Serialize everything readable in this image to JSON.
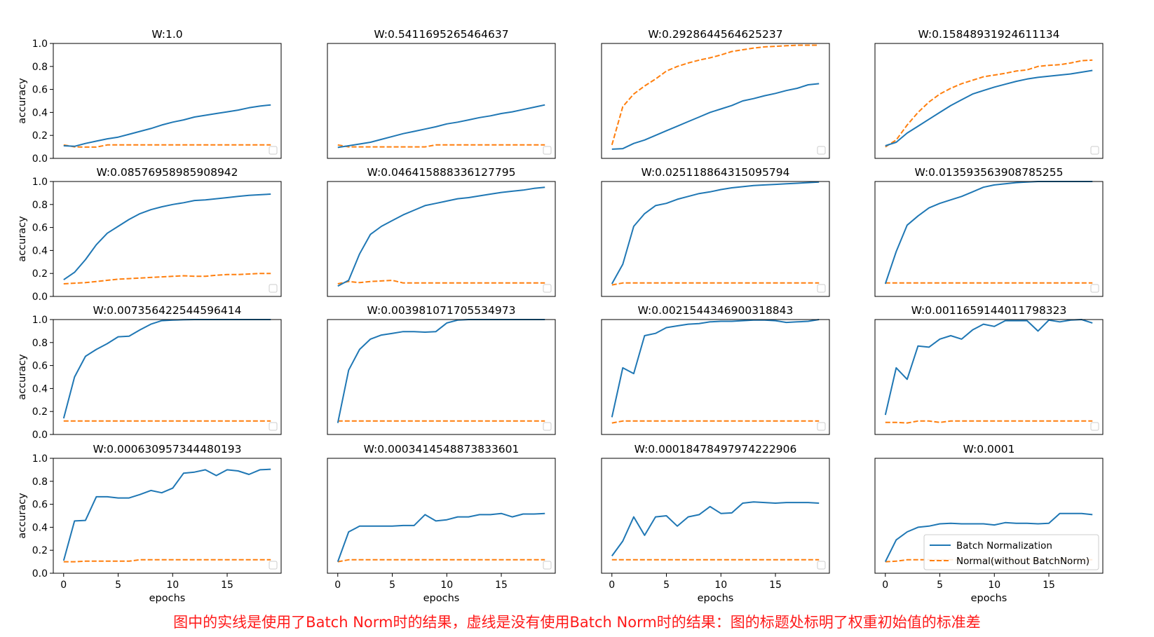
{
  "chart_data": {
    "type": "line",
    "ylabel": "accuracy",
    "xlabel": "epochs",
    "x_ticks": [
      0,
      5,
      10,
      15
    ],
    "y_ticks": [
      0.0,
      0.2,
      0.4,
      0.6,
      0.8,
      1.0
    ],
    "y_tick_labels": [
      "0.0",
      "0.2",
      "0.4",
      "0.6",
      "0.8",
      "1.0"
    ],
    "xlim": [
      -0.95,
      19.95
    ],
    "ylim": [
      0,
      1.0
    ],
    "legend": {
      "placement": "lower-right",
      "entries": [
        {
          "name": "Batch Normalization",
          "color": "#1f77b4",
          "style": "solid"
        },
        {
          "name": "Normal(without BatchNorm)",
          "color": "#ff7f0e",
          "style": "dashed"
        }
      ]
    },
    "x": [
      0,
      1,
      2,
      3,
      4,
      5,
      6,
      7,
      8,
      9,
      10,
      11,
      12,
      13,
      14,
      15,
      16,
      17,
      18,
      19
    ],
    "panels": [
      {
        "title": "W:1.0",
        "bn": [
          0.11,
          0.105,
          0.13,
          0.15,
          0.17,
          0.185,
          0.21,
          0.235,
          0.26,
          0.29,
          0.315,
          0.335,
          0.36,
          0.375,
          0.39,
          0.405,
          0.42,
          0.44,
          0.455,
          0.465
        ],
        "normal": [
          0.117,
          0.1,
          0.098,
          0.098,
          0.117,
          0.117,
          0.117,
          0.117,
          0.117,
          0.117,
          0.117,
          0.117,
          0.117,
          0.117,
          0.117,
          0.117,
          0.117,
          0.117,
          0.117,
          0.117
        ]
      },
      {
        "title": "W:0.5411695265464637",
        "bn": [
          0.095,
          0.11,
          0.125,
          0.14,
          0.165,
          0.19,
          0.215,
          0.235,
          0.255,
          0.275,
          0.3,
          0.315,
          0.335,
          0.355,
          0.37,
          0.39,
          0.405,
          0.425,
          0.445,
          0.465
        ],
        "normal": [
          0.117,
          0.1,
          0.1,
          0.1,
          0.1,
          0.1,
          0.1,
          0.1,
          0.1,
          0.117,
          0.117,
          0.117,
          0.117,
          0.117,
          0.117,
          0.117,
          0.117,
          0.117,
          0.117,
          0.117
        ]
      },
      {
        "title": "W:0.2928644564625237",
        "bn": [
          0.08,
          0.085,
          0.13,
          0.16,
          0.2,
          0.24,
          0.28,
          0.32,
          0.36,
          0.4,
          0.43,
          0.46,
          0.5,
          0.52,
          0.545,
          0.565,
          0.59,
          0.61,
          0.64,
          0.65
        ],
        "normal": [
          0.117,
          0.45,
          0.56,
          0.63,
          0.69,
          0.76,
          0.8,
          0.83,
          0.855,
          0.875,
          0.9,
          0.93,
          0.945,
          0.96,
          0.97,
          0.975,
          0.98,
          0.985,
          0.985,
          0.985
        ]
      },
      {
        "title": "W:0.15848931924611134",
        "bn": [
          0.11,
          0.14,
          0.22,
          0.28,
          0.34,
          0.4,
          0.46,
          0.51,
          0.56,
          0.59,
          0.62,
          0.645,
          0.67,
          0.69,
          0.705,
          0.715,
          0.725,
          0.735,
          0.75,
          0.765
        ],
        "normal": [
          0.1,
          0.16,
          0.29,
          0.4,
          0.49,
          0.56,
          0.61,
          0.65,
          0.68,
          0.71,
          0.725,
          0.74,
          0.76,
          0.77,
          0.8,
          0.81,
          0.815,
          0.83,
          0.85,
          0.855
        ]
      },
      {
        "title": "W:0.08576958985908942",
        "bn": [
          0.145,
          0.21,
          0.32,
          0.45,
          0.55,
          0.61,
          0.67,
          0.72,
          0.755,
          0.78,
          0.8,
          0.815,
          0.835,
          0.84,
          0.85,
          0.86,
          0.87,
          0.88,
          0.885,
          0.89
        ],
        "normal": [
          0.11,
          0.115,
          0.12,
          0.13,
          0.14,
          0.15,
          0.155,
          0.16,
          0.165,
          0.17,
          0.175,
          0.18,
          0.175,
          0.175,
          0.185,
          0.19,
          0.19,
          0.195,
          0.2,
          0.2
        ]
      },
      {
        "title": "W:0.046415888336127795",
        "bn": [
          0.09,
          0.14,
          0.37,
          0.54,
          0.61,
          0.66,
          0.71,
          0.75,
          0.79,
          0.81,
          0.83,
          0.85,
          0.86,
          0.875,
          0.89,
          0.905,
          0.915,
          0.925,
          0.94,
          0.95
        ],
        "normal": [
          0.11,
          0.13,
          0.12,
          0.13,
          0.135,
          0.14,
          0.117,
          0.117,
          0.117,
          0.117,
          0.117,
          0.117,
          0.117,
          0.117,
          0.117,
          0.117,
          0.117,
          0.117,
          0.117,
          0.117
        ]
      },
      {
        "title": "W:0.025118864315095794",
        "bn": [
          0.11,
          0.28,
          0.61,
          0.72,
          0.79,
          0.81,
          0.845,
          0.87,
          0.895,
          0.91,
          0.93,
          0.945,
          0.955,
          0.965,
          0.97,
          0.975,
          0.98,
          0.985,
          0.99,
          0.995
        ],
        "normal": [
          0.1,
          0.117,
          0.117,
          0.117,
          0.117,
          0.117,
          0.117,
          0.117,
          0.117,
          0.117,
          0.117,
          0.117,
          0.117,
          0.117,
          0.117,
          0.117,
          0.117,
          0.117,
          0.117,
          0.117
        ]
      },
      {
        "title": "W:0.013593563908785255",
        "bn": [
          0.11,
          0.39,
          0.62,
          0.7,
          0.77,
          0.81,
          0.84,
          0.87,
          0.91,
          0.95,
          0.97,
          0.98,
          0.99,
          0.995,
          1.0,
          1.0,
          1.0,
          1.0,
          1.0,
          1.0
        ],
        "normal": [
          0.117,
          0.117,
          0.117,
          0.117,
          0.117,
          0.117,
          0.117,
          0.117,
          0.117,
          0.117,
          0.117,
          0.117,
          0.117,
          0.117,
          0.117,
          0.117,
          0.117,
          0.117,
          0.117,
          0.117
        ]
      },
      {
        "title": "W:0.007356422544596414",
        "bn": [
          0.14,
          0.5,
          0.68,
          0.74,
          0.79,
          0.85,
          0.855,
          0.91,
          0.96,
          0.99,
          0.995,
          0.998,
          1.0,
          1.0,
          1.0,
          1.0,
          1.0,
          1.0,
          1.0,
          1.0
        ],
        "normal": [
          0.117,
          0.117,
          0.117,
          0.117,
          0.117,
          0.117,
          0.117,
          0.117,
          0.117,
          0.117,
          0.117,
          0.117,
          0.117,
          0.117,
          0.117,
          0.117,
          0.117,
          0.117,
          0.117,
          0.117
        ]
      },
      {
        "title": "W:0.003981071705534973",
        "bn": [
          0.1,
          0.56,
          0.74,
          0.83,
          0.865,
          0.88,
          0.895,
          0.895,
          0.89,
          0.895,
          0.97,
          0.995,
          1.0,
          1.0,
          1.0,
          1.0,
          1.0,
          1.0,
          1.0,
          1.0
        ],
        "normal": [
          0.117,
          0.117,
          0.117,
          0.117,
          0.117,
          0.117,
          0.117,
          0.117,
          0.117,
          0.117,
          0.117,
          0.117,
          0.117,
          0.117,
          0.117,
          0.117,
          0.117,
          0.117,
          0.117,
          0.117
        ]
      },
      {
        "title": "W:0.0021544346900318843",
        "bn": [
          0.15,
          0.58,
          0.53,
          0.86,
          0.88,
          0.93,
          0.945,
          0.96,
          0.965,
          0.98,
          0.985,
          0.985,
          0.99,
          0.995,
          0.995,
          0.99,
          0.975,
          0.98,
          0.985,
          1.0
        ],
        "normal": [
          0.1,
          0.117,
          0.117,
          0.117,
          0.117,
          0.117,
          0.117,
          0.117,
          0.117,
          0.117,
          0.117,
          0.117,
          0.117,
          0.117,
          0.117,
          0.117,
          0.117,
          0.117,
          0.117,
          0.117
        ]
      },
      {
        "title": "W:0.0011659144011798323",
        "bn": [
          0.17,
          0.58,
          0.48,
          0.77,
          0.76,
          0.83,
          0.86,
          0.83,
          0.91,
          0.96,
          0.94,
          0.99,
          0.99,
          0.99,
          0.9,
          0.995,
          0.98,
          0.995,
          1.0,
          0.97
        ],
        "normal": [
          0.105,
          0.105,
          0.1,
          0.117,
          0.117,
          0.105,
          0.117,
          0.117,
          0.117,
          0.117,
          0.117,
          0.117,
          0.117,
          0.117,
          0.117,
          0.117,
          0.117,
          0.117,
          0.117,
          0.117
        ]
      },
      {
        "title": "W:0.000630957344480193",
        "bn": [
          0.11,
          0.455,
          0.46,
          0.665,
          0.665,
          0.655,
          0.655,
          0.685,
          0.72,
          0.7,
          0.74,
          0.87,
          0.88,
          0.9,
          0.85,
          0.9,
          0.89,
          0.86,
          0.9,
          0.905
        ],
        "normal": [
          0.1,
          0.1,
          0.105,
          0.105,
          0.105,
          0.105,
          0.105,
          0.117,
          0.117,
          0.117,
          0.117,
          0.117,
          0.117,
          0.117,
          0.117,
          0.117,
          0.117,
          0.117,
          0.117,
          0.117
        ]
      },
      {
        "title": "W:0.0003414548873833601",
        "bn": [
          0.1,
          0.36,
          0.41,
          0.41,
          0.41,
          0.41,
          0.415,
          0.415,
          0.51,
          0.455,
          0.465,
          0.49,
          0.49,
          0.51,
          0.51,
          0.52,
          0.49,
          0.515,
          0.515,
          0.52
        ],
        "normal": [
          0.1,
          0.117,
          0.117,
          0.117,
          0.117,
          0.117,
          0.117,
          0.117,
          0.117,
          0.117,
          0.117,
          0.117,
          0.117,
          0.117,
          0.117,
          0.117,
          0.117,
          0.117,
          0.117,
          0.117
        ]
      },
      {
        "title": "W:0.00018478497974222906",
        "bn": [
          0.15,
          0.28,
          0.49,
          0.33,
          0.49,
          0.5,
          0.41,
          0.49,
          0.51,
          0.58,
          0.52,
          0.525,
          0.61,
          0.62,
          0.615,
          0.61,
          0.615,
          0.615,
          0.615,
          0.61
        ],
        "normal": [
          0.117,
          0.117,
          0.117,
          0.117,
          0.117,
          0.117,
          0.117,
          0.117,
          0.117,
          0.117,
          0.117,
          0.117,
          0.117,
          0.117,
          0.117,
          0.117,
          0.117,
          0.117,
          0.117,
          0.117
        ]
      },
      {
        "title": "W:0.0001",
        "bn": [
          0.1,
          0.29,
          0.36,
          0.4,
          0.41,
          0.43,
          0.435,
          0.43,
          0.43,
          0.43,
          0.42,
          0.44,
          0.435,
          0.435,
          0.43,
          0.435,
          0.52,
          0.52,
          0.52,
          0.51
        ],
        "normal": [
          0.1,
          0.105,
          0.117,
          0.117,
          0.117,
          0.117,
          0.117,
          0.117,
          0.117,
          0.117,
          0.117,
          0.117,
          0.117,
          0.117,
          0.117,
          0.117,
          0.117,
          0.117,
          0.117,
          0.117
        ]
      }
    ]
  },
  "caption": "图中的实线是使用了Batch Norm时的结果，虚线是没有使用Batch Norm时的结果：图的标题处标明了权重初始值的标准差"
}
